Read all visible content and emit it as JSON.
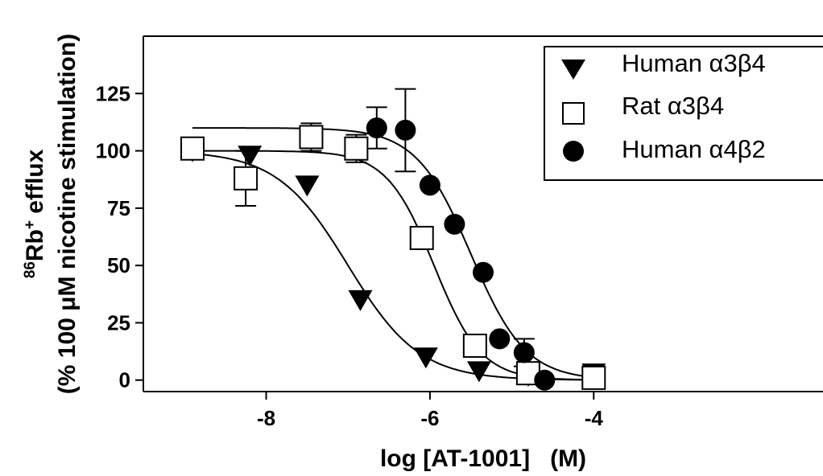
{
  "chart_data": {
    "type": "scatter",
    "xlabel": "log [AT-1001]   (M)",
    "ylabel_line1": "86Rb+ efflux",
    "ylabel_line1_sup1": "86",
    "ylabel_line1_main": "Rb",
    "ylabel_line1_sup2": "+",
    "ylabel_line1_rest": " efflux",
    "ylabel_line2": "(% 100 μM nicotine stimulation)",
    "xlim": [
      -9.5,
      -1.2
    ],
    "ylim": [
      -5,
      150
    ],
    "xticks": [
      -8,
      -6,
      -4
    ],
    "xtick_labels": [
      "-8",
      "-6",
      "-4"
    ],
    "yticks": [
      0,
      25,
      50,
      75,
      100,
      125
    ],
    "ytick_labels": [
      "0",
      "25",
      "50",
      "75",
      "100",
      "125"
    ],
    "grid": false,
    "legend_position": "top-right",
    "series": [
      {
        "name": "Human α3β4",
        "marker": "triangle-down",
        "fill": "#000000",
        "points": [
          {
            "x": -8.9,
            "y": 100
          },
          {
            "x": -8.2,
            "y": 98
          },
          {
            "x": -7.5,
            "y": 85
          },
          {
            "x": -6.85,
            "y": 35
          },
          {
            "x": -6.05,
            "y": 10
          },
          {
            "x": -5.4,
            "y": 4
          },
          {
            "x": -4.8,
            "y": 2
          },
          {
            "x": -4.0,
            "y": 3
          }
        ],
        "fit": {
          "bottom": 0,
          "top": 100,
          "logIC50": -7.0,
          "hill": 1.0
        }
      },
      {
        "name": "Rat α3β4",
        "marker": "square-open",
        "fill": "#ffffff",
        "points": [
          {
            "x": -8.9,
            "y": 101
          },
          {
            "x": -8.25,
            "y": 88,
            "err": 12
          },
          {
            "x": -7.45,
            "y": 106,
            "err": 6
          },
          {
            "x": -6.9,
            "y": 101,
            "err": 6
          },
          {
            "x": -6.1,
            "y": 62
          },
          {
            "x": -5.45,
            "y": 15
          },
          {
            "x": -4.8,
            "y": 3,
            "err": 4
          },
          {
            "x": -4.0,
            "y": 1
          }
        ],
        "fit": {
          "bottom": 0,
          "top": 100,
          "logIC50": -5.95,
          "hill": 1.5
        }
      },
      {
        "name": "Human α4β2",
        "marker": "circle",
        "fill": "#000000",
        "points": [
          {
            "x": -6.65,
            "y": 110,
            "err": 9
          },
          {
            "x": -6.3,
            "y": 109,
            "err": 18
          },
          {
            "x": -6.0,
            "y": 85
          },
          {
            "x": -5.7,
            "y": 68
          },
          {
            "x": -5.35,
            "y": 47
          },
          {
            "x": -5.15,
            "y": 18
          },
          {
            "x": -4.85,
            "y": 12,
            "err": 6
          },
          {
            "x": -4.6,
            "y": 0
          }
        ],
        "fit": {
          "bottom": 0,
          "top": 110,
          "logIC50": -5.5,
          "hill": 1.3
        }
      }
    ]
  }
}
